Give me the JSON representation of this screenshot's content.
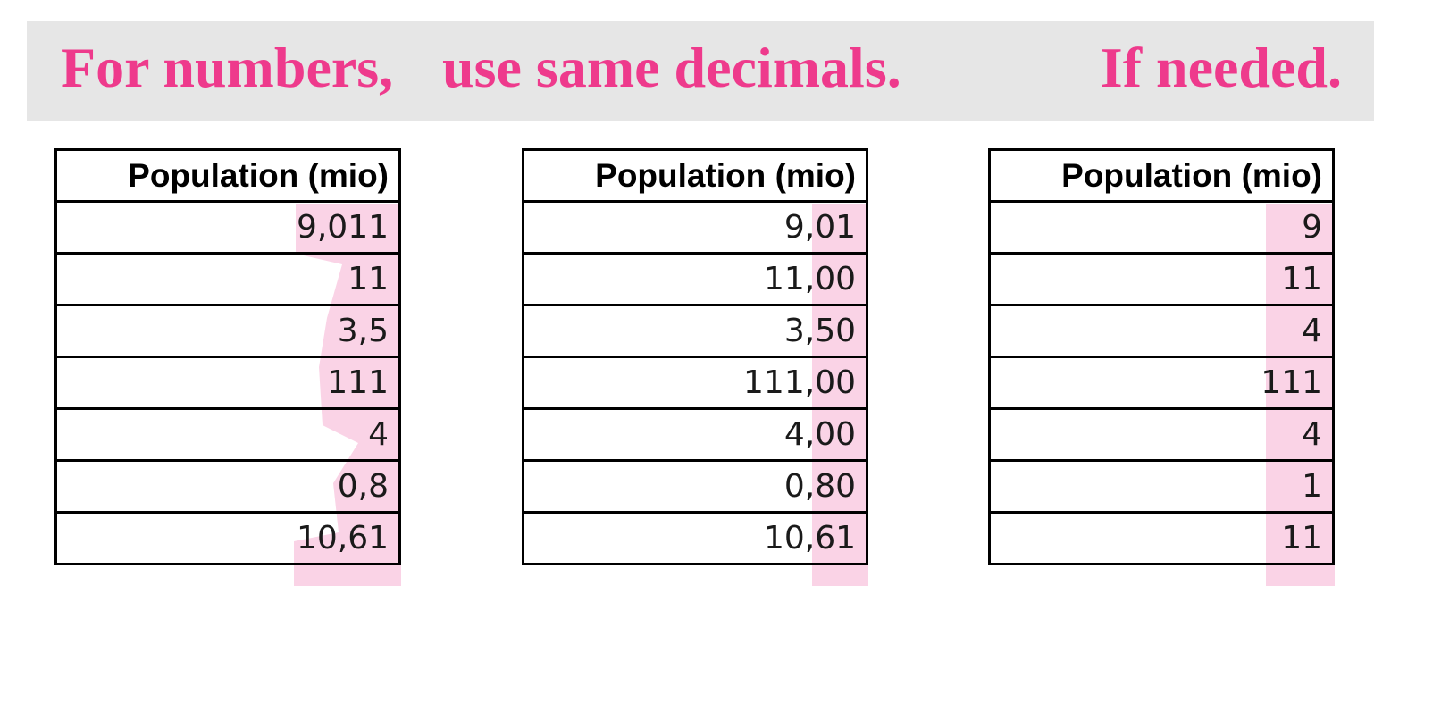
{
  "banner": {
    "part1": "For numbers,",
    "part2": "use same decimals.",
    "part3": "If needed."
  },
  "colors": {
    "accent": "#ee3a8c",
    "banner_bg": "#e6e6e6",
    "highlight": "#fad3e6"
  },
  "tables": [
    {
      "header": "Population (mio)",
      "rows": [
        "9,011",
        "11",
        "3,5",
        "111",
        "4",
        "0,8",
        "10,61"
      ]
    },
    {
      "header": "Population (mio)",
      "rows": [
        "9,01",
        "11,00",
        "3,50",
        "111,00",
        "4,00",
        "0,80",
        "10,61"
      ]
    },
    {
      "header": "Population (mio)",
      "rows": [
        "9",
        "11",
        "4",
        "111",
        "4",
        "1",
        "11"
      ]
    }
  ]
}
